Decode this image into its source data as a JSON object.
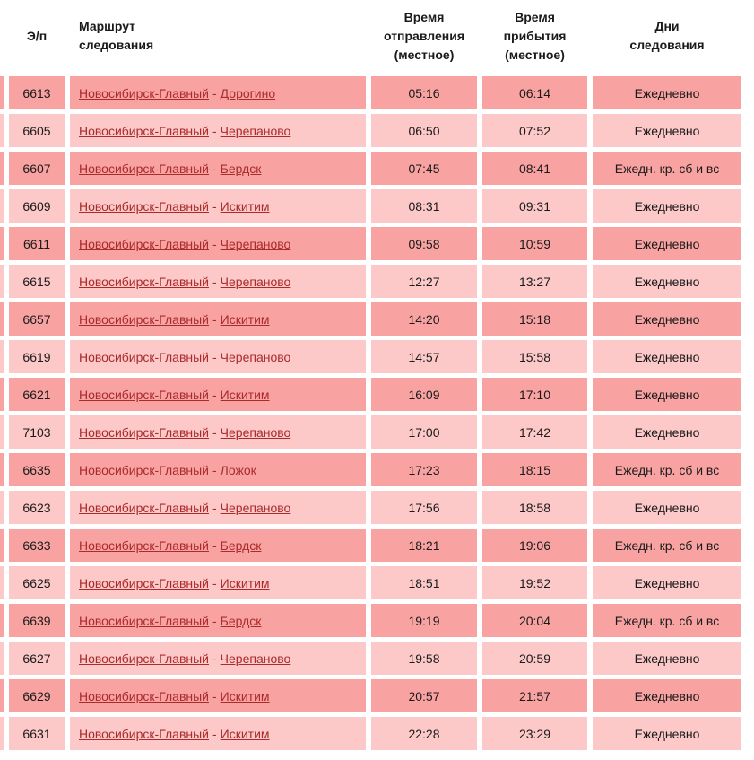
{
  "colors": {
    "row_dark": "#f9a2a2",
    "row_light": "#fcc8c8",
    "link_red": "#aa2b2b",
    "text_dark": "#1a1a1a",
    "page_bg": "#ffffff"
  },
  "route_separator": "-",
  "table": {
    "headers": {
      "num": "Э/п",
      "route": "Маршрут\nследования",
      "departure": "Время\nотправления\n(местное)",
      "arrival": "Время\nприбытия\n(местное)",
      "days": "Дни\nследования"
    },
    "rows": [
      {
        "num": "6613",
        "from": "Новосибирск-Главный",
        "to": "Дорогино",
        "dep": "05:16",
        "arr": "06:14",
        "days": "Ежедневно"
      },
      {
        "num": "6605",
        "from": "Новосибирск-Главный",
        "to": "Черепаново",
        "dep": "06:50",
        "arr": "07:52",
        "days": "Ежедневно"
      },
      {
        "num": "6607",
        "from": "Новосибирск-Главный",
        "to": "Бердск",
        "dep": "07:45",
        "arr": "08:41",
        "days": "Ежедн. кр. сб и вс"
      },
      {
        "num": "6609",
        "from": "Новосибирск-Главный",
        "to": "Искитим",
        "dep": "08:31",
        "arr": "09:31",
        "days": "Ежедневно"
      },
      {
        "num": "6611",
        "from": "Новосибирск-Главный",
        "to": "Черепаново",
        "dep": "09:58",
        "arr": "10:59",
        "days": "Ежедневно"
      },
      {
        "num": "6615",
        "from": "Новосибирск-Главный",
        "to": "Черепаново",
        "dep": "12:27",
        "arr": "13:27",
        "days": "Ежедневно"
      },
      {
        "num": "6657",
        "from": "Новосибирск-Главный",
        "to": "Искитим",
        "dep": "14:20",
        "arr": "15:18",
        "days": "Ежедневно"
      },
      {
        "num": "6619",
        "from": "Новосибирск-Главный",
        "to": "Черепаново",
        "dep": "14:57",
        "arr": "15:58",
        "days": "Ежедневно"
      },
      {
        "num": "6621",
        "from": "Новосибирск-Главный",
        "to": "Искитим",
        "dep": "16:09",
        "arr": "17:10",
        "days": "Ежедневно"
      },
      {
        "num": "7103",
        "from": "Новосибирск-Главный",
        "to": "Черепаново",
        "dep": "17:00",
        "arr": "17:42",
        "days": "Ежедневно"
      },
      {
        "num": "6635",
        "from": "Новосибирск-Главный",
        "to": "Ложок",
        "dep": "17:23",
        "arr": "18:15",
        "days": "Ежедн. кр. сб и вс"
      },
      {
        "num": "6623",
        "from": "Новосибирск-Главный",
        "to": "Черепаново",
        "dep": "17:56",
        "arr": "18:58",
        "days": "Ежедневно"
      },
      {
        "num": "6633",
        "from": "Новосибирск-Главный",
        "to": "Бердск",
        "dep": "18:21",
        "arr": "19:06",
        "days": "Ежедн. кр. сб и вс"
      },
      {
        "num": "6625",
        "from": "Новосибирск-Главный",
        "to": "Искитим",
        "dep": "18:51",
        "arr": "19:52",
        "days": "Ежедневно"
      },
      {
        "num": "6639",
        "from": "Новосибирск-Главный",
        "to": "Бердск",
        "dep": "19:19",
        "arr": "20:04",
        "days": "Ежедн. кр. сб и вс"
      },
      {
        "num": "6627",
        "from": "Новосибирск-Главный",
        "to": "Черепаново",
        "dep": "19:58",
        "arr": "20:59",
        "days": "Ежедневно"
      },
      {
        "num": "6629",
        "from": "Новосибирск-Главный",
        "to": "Искитим",
        "dep": "20:57",
        "arr": "21:57",
        "days": "Ежедневно"
      },
      {
        "num": "6631",
        "from": "Новосибирск-Главный",
        "to": "Искитим",
        "dep": "22:28",
        "arr": "23:29",
        "days": "Ежедневно"
      }
    ]
  }
}
